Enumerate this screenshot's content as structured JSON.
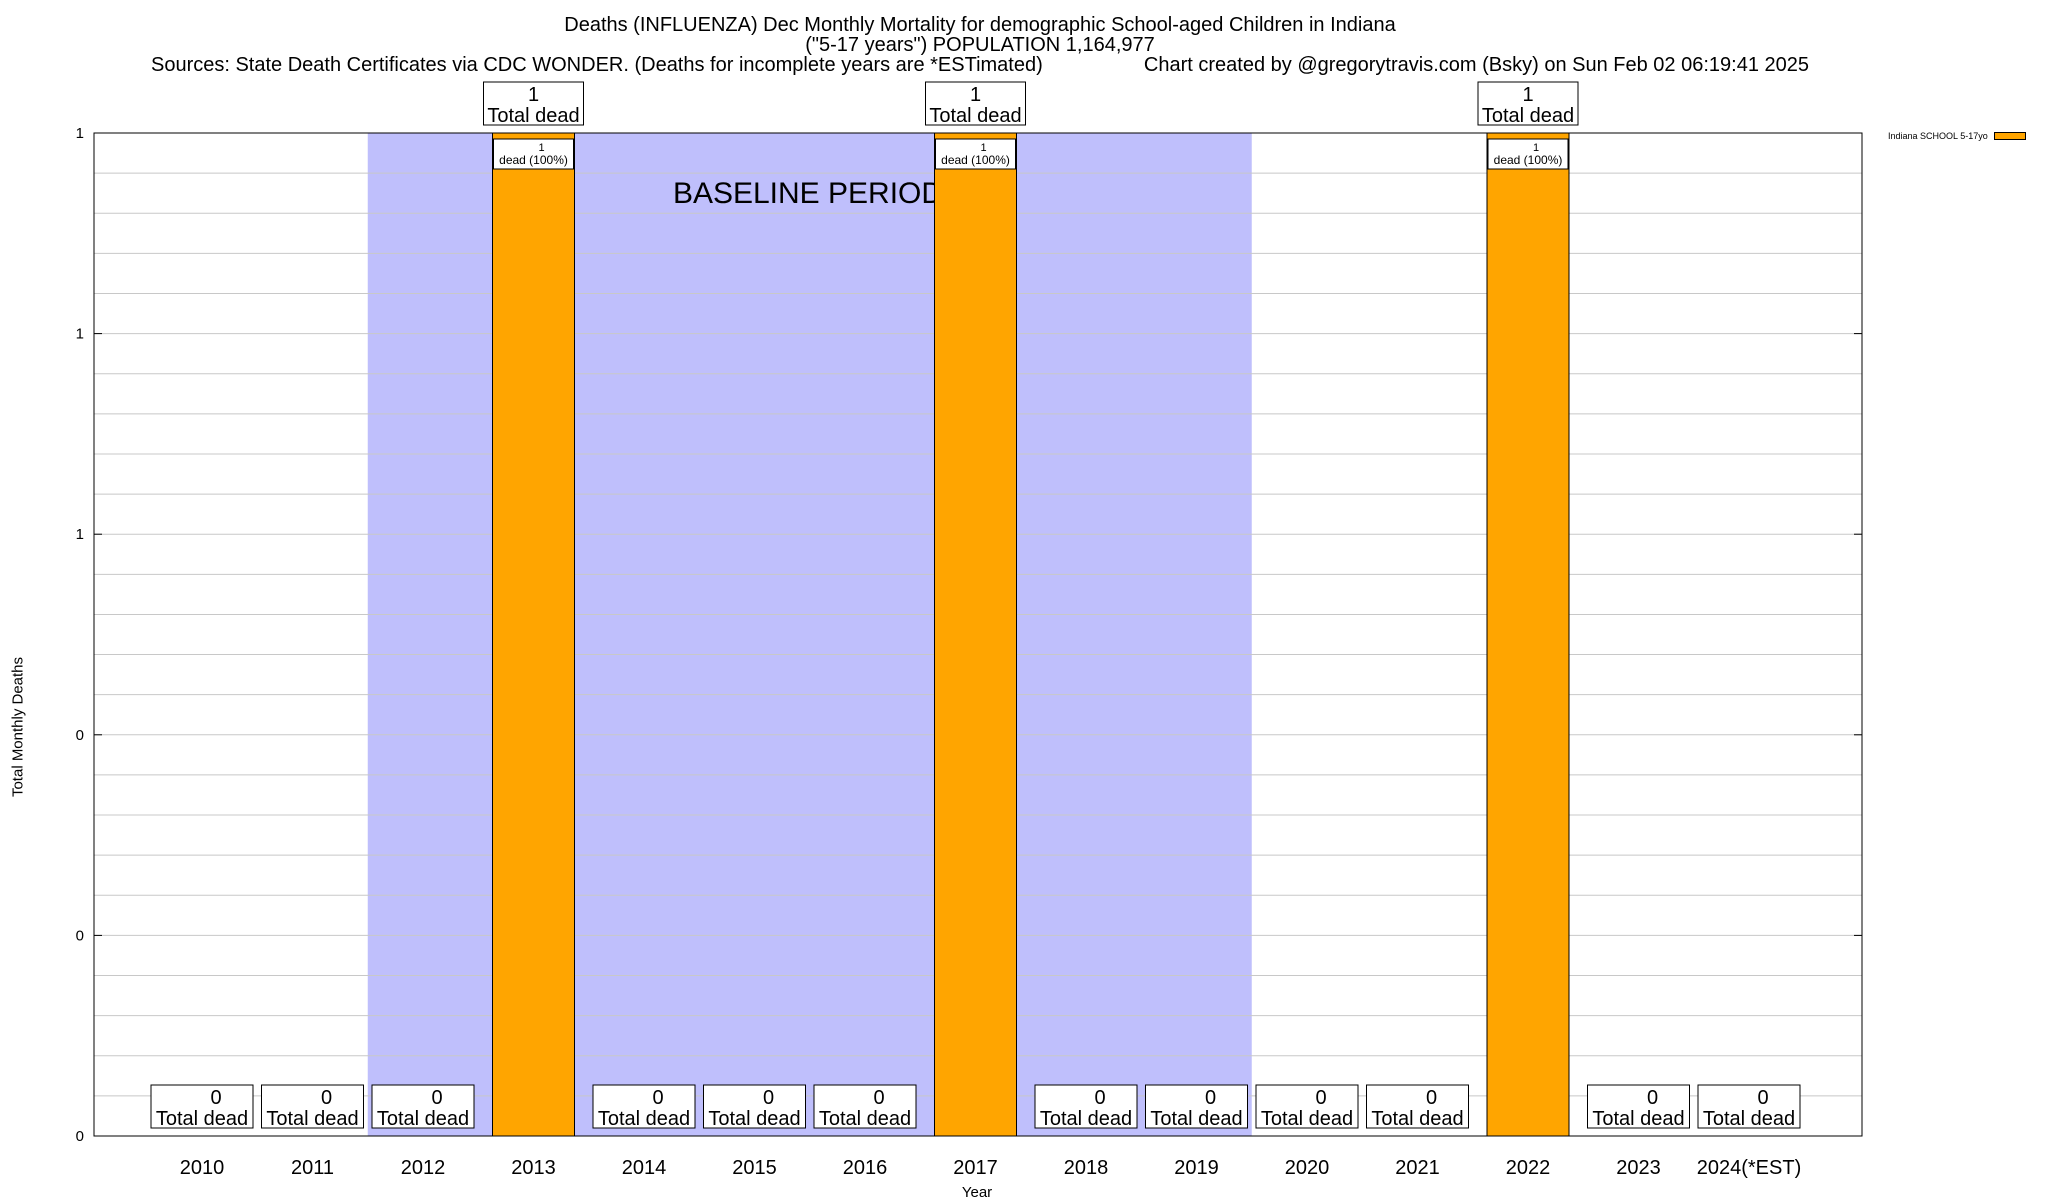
{
  "header": {
    "title_line1": "Deaths (INFLUENZA) Dec Monthly Mortality for demographic School-aged Children in Indiana",
    "title_line2": "(\"5-17 years\") POPULATION 1,164,977",
    "sources": "Sources: State Death Certificates via CDC WONDER. (Deaths for incomplete years are *ESTimated)",
    "credit": "Chart created by @gregorytravis.com (Bsky) on Sun Feb 02 06:19:41 2025"
  },
  "chart_data": {
    "type": "bar",
    "xlabel": "Year",
    "ylabel": "Total Monthly Deaths",
    "ylim": [
      0,
      1
    ],
    "y_tick_labels": [
      "0",
      "0",
      "0",
      "1",
      "1",
      "1"
    ],
    "grid": true,
    "legend_position": "top-right",
    "categories": [
      "2010",
      "2011",
      "2012",
      "2013",
      "2014",
      "2015",
      "2016",
      "2017",
      "2018",
      "2019",
      "2020",
      "2021",
      "2022",
      "2023",
      "2024(*EST)"
    ],
    "series": [
      {
        "name": "Indiana SCHOOL 5-17yo",
        "color": "#ffa500",
        "values": [
          0,
          0,
          0,
          1,
          0,
          0,
          0,
          1,
          0,
          0,
          0,
          0,
          1,
          0,
          0
        ],
        "segment_labels": [
          "",
          "",
          "",
          "1\ndead (100%)",
          "",
          "",
          "",
          "1\ndead (100%)",
          "",
          "",
          "",
          "",
          "1\ndead (100%)",
          "",
          ""
        ]
      }
    ],
    "total_labels": [
      "0\nTotal dead",
      "0\nTotal dead",
      "0\nTotal dead",
      "1\nTotal dead",
      "0\nTotal dead",
      "0\nTotal dead",
      "0\nTotal dead",
      "1\nTotal dead",
      "0\nTotal dead",
      "0\nTotal dead",
      "0\nTotal dead",
      "0\nTotal dead",
      "1\nTotal dead",
      "0\nTotal dead",
      "0\nTotal dead"
    ],
    "baseline_period": {
      "label": "BASELINE PERIOD",
      "start_category": "2012",
      "end_category": "2019",
      "color": "#bfbffc"
    }
  }
}
